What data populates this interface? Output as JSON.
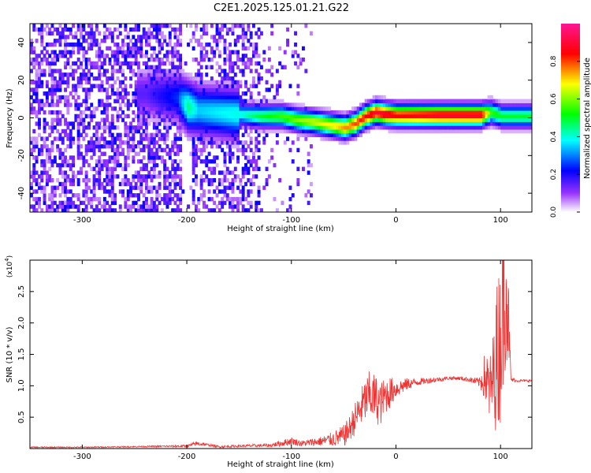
{
  "figure": {
    "title": "C2E1.2025.125.01.21.G22"
  },
  "chart_data": [
    {
      "type": "heatmap",
      "xlabel": "Height of straight line (km)",
      "ylabel": "Frequency (Hz)",
      "xlim": [
        -350,
        130
      ],
      "ylim": [
        -50,
        50
      ],
      "xticks": [
        -300,
        -200,
        -100,
        0,
        100
      ],
      "yticks": [
        -40,
        -20,
        0,
        20,
        40
      ],
      "colorbar": {
        "label": "Normalized spectral amplitude",
        "range": [
          0,
          1
        ],
        "ticks": [
          0.0,
          0.2,
          0.4,
          0.6,
          0.8
        ],
        "tick_labels": [
          "0.0",
          "0.2",
          "0.4",
          "0.6",
          "0.8"
        ],
        "colors": [
          "#ffffff",
          "#7f00ff",
          "#0000ff",
          "#00ffff",
          "#00ff00",
          "#ffff00",
          "#ff0000",
          "#ff1493"
        ]
      },
      "ridge": {
        "description_points_x": [
          -240,
          -210,
          -200,
          -190,
          -150,
          -130,
          -110,
          -95,
          -80,
          -60,
          -50,
          -40,
          -30,
          -20,
          -10,
          0,
          40,
          80,
          90,
          100,
          130
        ],
        "frequency_hz": [
          12,
          10,
          5,
          3,
          1,
          0,
          0,
          -2,
          -3,
          -5,
          -6,
          -4,
          0,
          2,
          1,
          0.5,
          0.5,
          0.5,
          2,
          0,
          0
        ],
        "peak_amplitude": [
          0.15,
          0.25,
          0.45,
          0.35,
          0.4,
          0.5,
          0.55,
          0.6,
          0.65,
          0.7,
          0.75,
          0.8,
          0.85,
          0.9,
          0.9,
          0.85,
          0.9,
          0.9,
          0.55,
          0.5,
          0.5
        ]
      }
    },
    {
      "type": "line",
      "xlabel": "Height of straight line (km)",
      "ylabel": "SNR (10 * v/v)",
      "y_multiplier": "(x10",
      "y_multiplier_exp": "4",
      "xlim": [
        -350,
        130
      ],
      "ylim": [
        0,
        3.0
      ],
      "xticks": [
        -300,
        -200,
        -100,
        0,
        100
      ],
      "yticks": [
        0.5,
        1.0,
        1.5,
        2.0,
        2.5
      ],
      "ytick_labels": [
        "0.5",
        "1.0",
        "1.5",
        "2.0",
        "2.5"
      ],
      "series": [
        {
          "color": "#ee3333",
          "x": [
            -350,
            -300,
            -250,
            -200,
            -190,
            -180,
            -170,
            -150,
            -120,
            -105,
            -100,
            -90,
            -80,
            -70,
            -60,
            -50,
            -45,
            -40,
            -35,
            -30,
            -25,
            -20,
            -15,
            -10,
            -5,
            0,
            10,
            20,
            30,
            40,
            50,
            60,
            70,
            80,
            85,
            90,
            95,
            100,
            105,
            110,
            115,
            120,
            130
          ],
          "y": [
            0.02,
            0.02,
            0.03,
            0.04,
            0.08,
            0.06,
            0.03,
            0.04,
            0.05,
            0.1,
            0.12,
            0.08,
            0.1,
            0.12,
            0.15,
            0.2,
            0.3,
            0.45,
            0.6,
            0.75,
            0.85,
            0.8,
            0.7,
            0.85,
            0.9,
            0.95,
            1.02,
            1.06,
            1.08,
            1.1,
            1.12,
            1.12,
            1.1,
            1.05,
            1.15,
            0.9,
            1.3,
            1.8,
            2.9,
            1.1,
            1.08,
            1.08,
            1.08
          ],
          "noise_band": [
            0.01,
            0.01,
            0.01,
            0.02,
            0.04,
            0.02,
            0.02,
            0.02,
            0.03,
            0.06,
            0.06,
            0.05,
            0.06,
            0.08,
            0.12,
            0.18,
            0.2,
            0.25,
            0.3,
            0.35,
            0.4,
            0.4,
            0.35,
            0.3,
            0.25,
            0.15,
            0.1,
            0.06,
            0.05,
            0.04,
            0.03,
            0.03,
            0.04,
            0.08,
            0.4,
            0.6,
            0.8,
            1.0,
            1.1,
            0.05,
            0.02,
            0.02,
            0.02
          ]
        }
      ]
    }
  ]
}
